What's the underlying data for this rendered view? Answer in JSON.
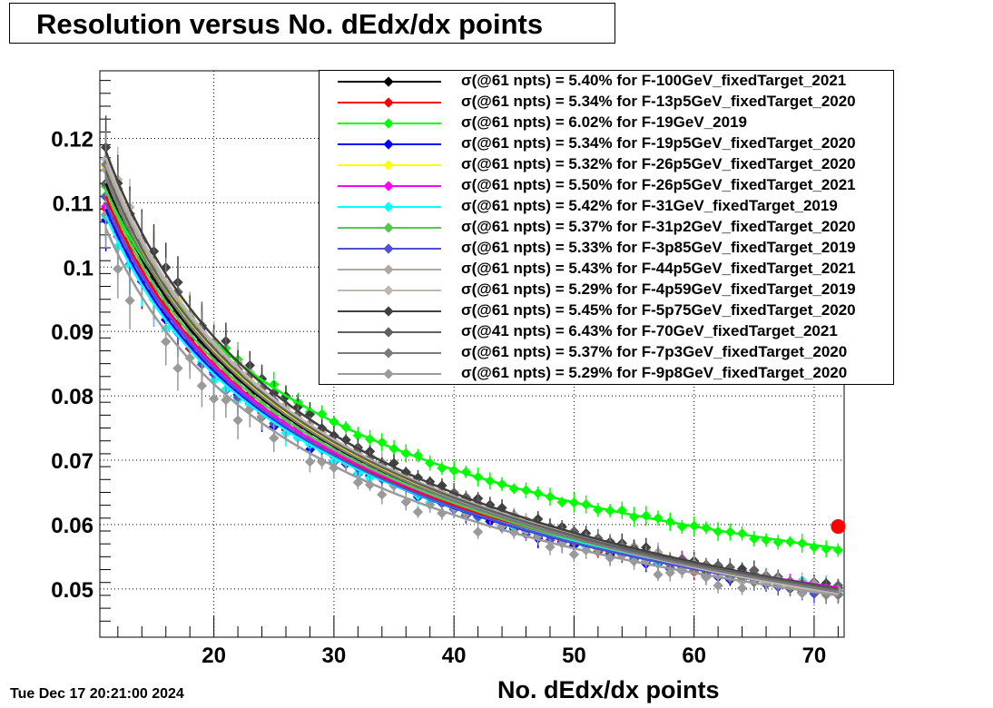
{
  "title": "Resolution versus No. dEdx/dx points",
  "timestamp": "Tue Dec 17 20:21:00 2024",
  "chart_data": {
    "type": "scatter",
    "title": "Resolution versus No. dEdx/dx points",
    "xlabel": "No. dEdx/dx points",
    "ylabel": "",
    "xlim": [
      10.5,
      72.5
    ],
    "ylim": [
      0.0425,
      0.1305
    ],
    "x_ticks": [
      20,
      30,
      40,
      50,
      60,
      70
    ],
    "y_ticks": [
      0.05,
      0.06,
      0.07,
      0.08,
      0.09,
      0.1,
      0.11,
      0.12
    ],
    "x_tick_labels": [
      "20",
      "30",
      "40",
      "50",
      "60",
      "70"
    ],
    "y_tick_labels": [
      "0.05",
      "0.06",
      "0.07",
      "0.08",
      "0.09",
      "0.1",
      "0.11",
      "0.12"
    ],
    "grid": true,
    "legend_position": "top-right",
    "x_range": [
      11,
      72
    ],
    "highlight_point": {
      "x": 72,
      "y": 0.0597,
      "color": "#ff0000"
    },
    "series": [
      {
        "name": "F-100GeV_fixedTarget_2021",
        "label": "σ(@61 npts) =  5.40% for F-100GeV_fixedTarget_2021",
        "color": "#000000",
        "y_start": 0.113,
        "y_end": 0.0499,
        "scatter": 0.0012
      },
      {
        "name": "F-13p5GeV_fixedTarget_2020",
        "label": "σ(@61 npts) =  5.34% for F-13p5GeV_fixedTarget_2020",
        "color": "#ff0000",
        "y_start": 0.111,
        "y_end": 0.0495,
        "scatter": 0.0015
      },
      {
        "name": "F-19GeV_2019",
        "label": "σ(@61 npts) =  6.02% for F-19GeV_2019",
        "color": "#00ff00",
        "y_start": 0.112,
        "y_end": 0.0563,
        "scatter": 0.0008
      },
      {
        "name": "F-19p5GeV_fixedTarget_2020",
        "label": "σ(@61 npts) =  5.34% for F-19p5GeV_fixedTarget_2020",
        "color": "#0000ff",
        "y_start": 0.109,
        "y_end": 0.0495,
        "scatter": 0.0015
      },
      {
        "name": "F-26p5GeV_fixedTarget_2020",
        "label": "σ(@61 npts) =  5.32% for F-26p5GeV_fixedTarget_2020",
        "color": "#ffff00",
        "y_start": 0.115,
        "y_end": 0.0494,
        "scatter": 0.0012
      },
      {
        "name": "F-26p5GeV_fixedTarget_2021",
        "label": "σ(@61 npts) =  5.50% for F-26p5GeV_fixedTarget_2021",
        "color": "#ff00ff",
        "y_start": 0.11,
        "y_end": 0.0502,
        "scatter": 0.001
      },
      {
        "name": "F-31GeV_fixedTarget_2019",
        "label": "σ(@61 npts) =  5.42% for F-31GeV_fixedTarget_2019",
        "color": "#00ffff",
        "y_start": 0.108,
        "y_end": 0.0499,
        "scatter": 0.0012
      },
      {
        "name": "F-31p2GeV_fixedTarget_2020",
        "label": "σ(@61 npts) =  5.37% for F-31p2GeV_fixedTarget_2020",
        "color": "#4fc94f",
        "y_start": 0.112,
        "y_end": 0.0497,
        "scatter": 0.0012
      },
      {
        "name": "F-3p85GeV_fixedTarget_2019",
        "label": "σ(@61 npts) =  5.33% for F-3p85GeV_fixedTarget_2019",
        "color": "#5050d0",
        "y_start": 0.11,
        "y_end": 0.0494,
        "scatter": 0.0015
      },
      {
        "name": "F-44p5GeV_fixedTarget_2021",
        "label": "σ(@61 npts) =  5.43% for F-44p5GeV_fixedTarget_2021",
        "color": "#b0a8a0",
        "y_start": 0.116,
        "y_end": 0.0499,
        "scatter": 0.0012
      },
      {
        "name": "F-4p59GeV_fixedTarget_2019",
        "label": "σ(@61 npts) =  5.29% for F-4p59GeV_fixedTarget_2019",
        "color": "#c0b8b0",
        "y_start": 0.117,
        "y_end": 0.0492,
        "scatter": 0.0015
      },
      {
        "name": "F-5p75GeV_fixedTarget_2020",
        "label": "σ(@61 npts) =  5.45% for F-5p75GeV_fixedTarget_2020",
        "color": "#404040",
        "y_start": 0.118,
        "y_end": 0.05,
        "scatter": 0.0015
      },
      {
        "name": "F-70GeV_fixedTarget_2021",
        "label": "σ(@41 npts) =  6.43% for F-70GeV_fixedTarget_2021",
        "color": "#606060",
        "y_start": 0.115,
        "y_end": 0.0499,
        "scatter": 0.0018
      },
      {
        "name": "F-7p3GeV_fixedTarget_2020",
        "label": "σ(@61 npts) =  5.37% for F-7p3GeV_fixedTarget_2020",
        "color": "#7a7a7a",
        "y_start": 0.114,
        "y_end": 0.0496,
        "scatter": 0.0015
      },
      {
        "name": "F-9p8GeV_fixedTarget_2020",
        "label": "σ(@61 npts) =  5.29% for F-9p8GeV_fixedTarget_2020",
        "color": "#9a9a9a",
        "y_start": 0.106,
        "y_end": 0.049,
        "scatter": 0.003
      }
    ]
  }
}
